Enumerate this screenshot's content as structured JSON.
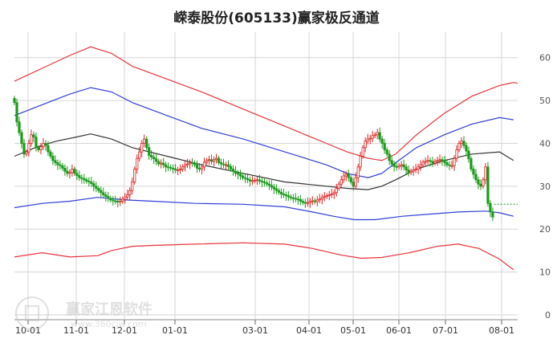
{
  "title": "嵘泰股份(605133)赢家极反通道",
  "watermark": {
    "brand": "赢家江恩软件",
    "url": "www.360cjw.com"
  },
  "colors": {
    "up_candle": "#e02020",
    "down_candle": "#1a9a1a",
    "outer_band": "#e8333a",
    "inner_band": "#2f3fd6",
    "mid_line": "#333333",
    "projection": "#1a9a1a",
    "grid": "#d6d6d6"
  },
  "chart_data": {
    "type": "line",
    "y_ticks": [
      0,
      10,
      20,
      30,
      40,
      50,
      60
    ],
    "ylim": [
      0,
      65
    ],
    "x_ticks": [
      "10-01",
      "11-01",
      "12-01",
      "01-01",
      "03-01",
      "04-01",
      "05-01",
      "06-01",
      "07-01",
      "08-01"
    ],
    "grid": true,
    "series": [
      {
        "role": "outer_upper",
        "points": [
          [
            0,
            54.5
          ],
          [
            20,
            57.5
          ],
          [
            40,
            60.5
          ],
          [
            55,
            62.5
          ],
          [
            70,
            61
          ],
          [
            85,
            58
          ],
          [
            110,
            55
          ],
          [
            135,
            52
          ],
          [
            165,
            48
          ],
          [
            195,
            44
          ],
          [
            225,
            40
          ],
          [
            240,
            38
          ],
          [
            255,
            36.5
          ],
          [
            265,
            36
          ],
          [
            275,
            37.5
          ],
          [
            290,
            42
          ],
          [
            310,
            47
          ],
          [
            330,
            51
          ],
          [
            350,
            53.5
          ],
          [
            360,
            54.2
          ],
          [
            363,
            54
          ]
        ]
      },
      {
        "role": "inner_upper",
        "points": [
          [
            0,
            46.5
          ],
          [
            20,
            49
          ],
          [
            40,
            51.5
          ],
          [
            55,
            53
          ],
          [
            70,
            52
          ],
          [
            85,
            49.5
          ],
          [
            110,
            46.5
          ],
          [
            135,
            43.5
          ],
          [
            165,
            41
          ],
          [
            195,
            38
          ],
          [
            225,
            35
          ],
          [
            240,
            33
          ],
          [
            255,
            32
          ],
          [
            265,
            33
          ],
          [
            275,
            35.5
          ],
          [
            290,
            39
          ],
          [
            310,
            42
          ],
          [
            330,
            44.5
          ],
          [
            350,
            46
          ],
          [
            360,
            45.5
          ]
        ]
      },
      {
        "role": "middle",
        "points": [
          [
            0,
            37
          ],
          [
            15,
            39
          ],
          [
            30,
            40.5
          ],
          [
            45,
            41.5
          ],
          [
            55,
            42.2
          ],
          [
            70,
            41
          ],
          [
            85,
            39
          ],
          [
            110,
            37
          ],
          [
            135,
            35
          ],
          [
            165,
            33
          ],
          [
            195,
            31
          ],
          [
            225,
            30
          ],
          [
            240,
            29.5
          ],
          [
            255,
            29.2
          ],
          [
            265,
            30
          ],
          [
            275,
            31.5
          ],
          [
            290,
            34
          ],
          [
            310,
            36
          ],
          [
            330,
            37.5
          ],
          [
            350,
            38
          ],
          [
            360,
            36
          ]
        ]
      },
      {
        "role": "inner_lower",
        "points": [
          [
            0,
            25
          ],
          [
            20,
            26
          ],
          [
            40,
            26.5
          ],
          [
            60,
            27.4
          ],
          [
            80,
            26.8
          ],
          [
            100,
            26.5
          ],
          [
            130,
            26
          ],
          [
            165,
            25.8
          ],
          [
            195,
            25.2
          ],
          [
            215,
            24
          ],
          [
            230,
            23
          ],
          [
            245,
            22.2
          ],
          [
            260,
            22.2
          ],
          [
            280,
            23
          ],
          [
            300,
            23.5
          ],
          [
            320,
            24
          ],
          [
            340,
            24.2
          ],
          [
            350,
            23.8
          ],
          [
            360,
            23
          ]
        ]
      },
      {
        "role": "outer_lower",
        "points": [
          [
            0,
            13.5
          ],
          [
            20,
            14.5
          ],
          [
            40,
            13.5
          ],
          [
            60,
            13.8
          ],
          [
            70,
            15
          ],
          [
            85,
            16
          ],
          [
            100,
            16.2
          ],
          [
            130,
            16.5
          ],
          [
            165,
            16.8
          ],
          [
            195,
            16.5
          ],
          [
            215,
            15.5
          ],
          [
            235,
            14
          ],
          [
            250,
            13.2
          ],
          [
            265,
            13.4
          ],
          [
            285,
            14.5
          ],
          [
            305,
            16
          ],
          [
            320,
            16.5
          ],
          [
            335,
            15.5
          ],
          [
            350,
            13
          ],
          [
            360,
            10.5
          ]
        ]
      }
    ],
    "closes": [
      49.5,
      45,
      42.5,
      40,
      37.5,
      38,
      40,
      42,
      41.5,
      39,
      38.5,
      39.2,
      40,
      39.5,
      38,
      37,
      36,
      35.5,
      35,
      34.8,
      34.2,
      33.5,
      33,
      33.2,
      34,
      33,
      32.5,
      32,
      31.8,
      31.5,
      31.2,
      31,
      30.6,
      30,
      29.5,
      29,
      28.5,
      28,
      27.6,
      27.2,
      26.8,
      26.6,
      26.5,
      26.3,
      26.5,
      27,
      27.5,
      28,
      29,
      31,
      34,
      36.5,
      38,
      40,
      41,
      39,
      37.2,
      36.8,
      36.4,
      35.8,
      35.2,
      35.4,
      35,
      34.5,
      34.4,
      34.2,
      34,
      33.8,
      33.8,
      34,
      34.5,
      35,
      35.2,
      35.5,
      35.4,
      35,
      34.2,
      34,
      34.5,
      35.6,
      36,
      36.2,
      35.8,
      36.2,
      36.5,
      35.5,
      35.2,
      35,
      35,
      34.6,
      34,
      33.5,
      33,
      32.8,
      32.4,
      32,
      31.8,
      31.5,
      31.2,
      31.3,
      31.4,
      31.5,
      31.2,
      31,
      30.8,
      30.5,
      30.2,
      29.8,
      29.4,
      29,
      28.6,
      28.2,
      28,
      27.8,
      27.5,
      27.3,
      27.2,
      27,
      26.9,
      26.5,
      26.2,
      26,
      26.2,
      26.5,
      26.6,
      26.4,
      26.8,
      27,
      27.4,
      27.6,
      27.8,
      28,
      28.2,
      28.5,
      29.5,
      30.5,
      31.5,
      32.4,
      32.8,
      32,
      31,
      30,
      32,
      34.5,
      37,
      39,
      40.5,
      41,
      41.2,
      41.8,
      42,
      42.5,
      41,
      40,
      38.5,
      37.5,
      36,
      35.2,
      34.6,
      34.5,
      34.8,
      35,
      34.5,
      33.8,
      33.2,
      33.5,
      33.8,
      34,
      34.5,
      35,
      35.6,
      35.8,
      36,
      35.8,
      35.4,
      35.8,
      36,
      36.2,
      36,
      35.5,
      35,
      34.8,
      34.8,
      36.5,
      38.5,
      40,
      40.5,
      39.5,
      38.2,
      36.4,
      34,
      32.8,
      31.5,
      30.5,
      30,
      31.5,
      34.5,
      26,
      24,
      22.8
    ],
    "last_close": 25.8,
    "projection_until": 363
  }
}
